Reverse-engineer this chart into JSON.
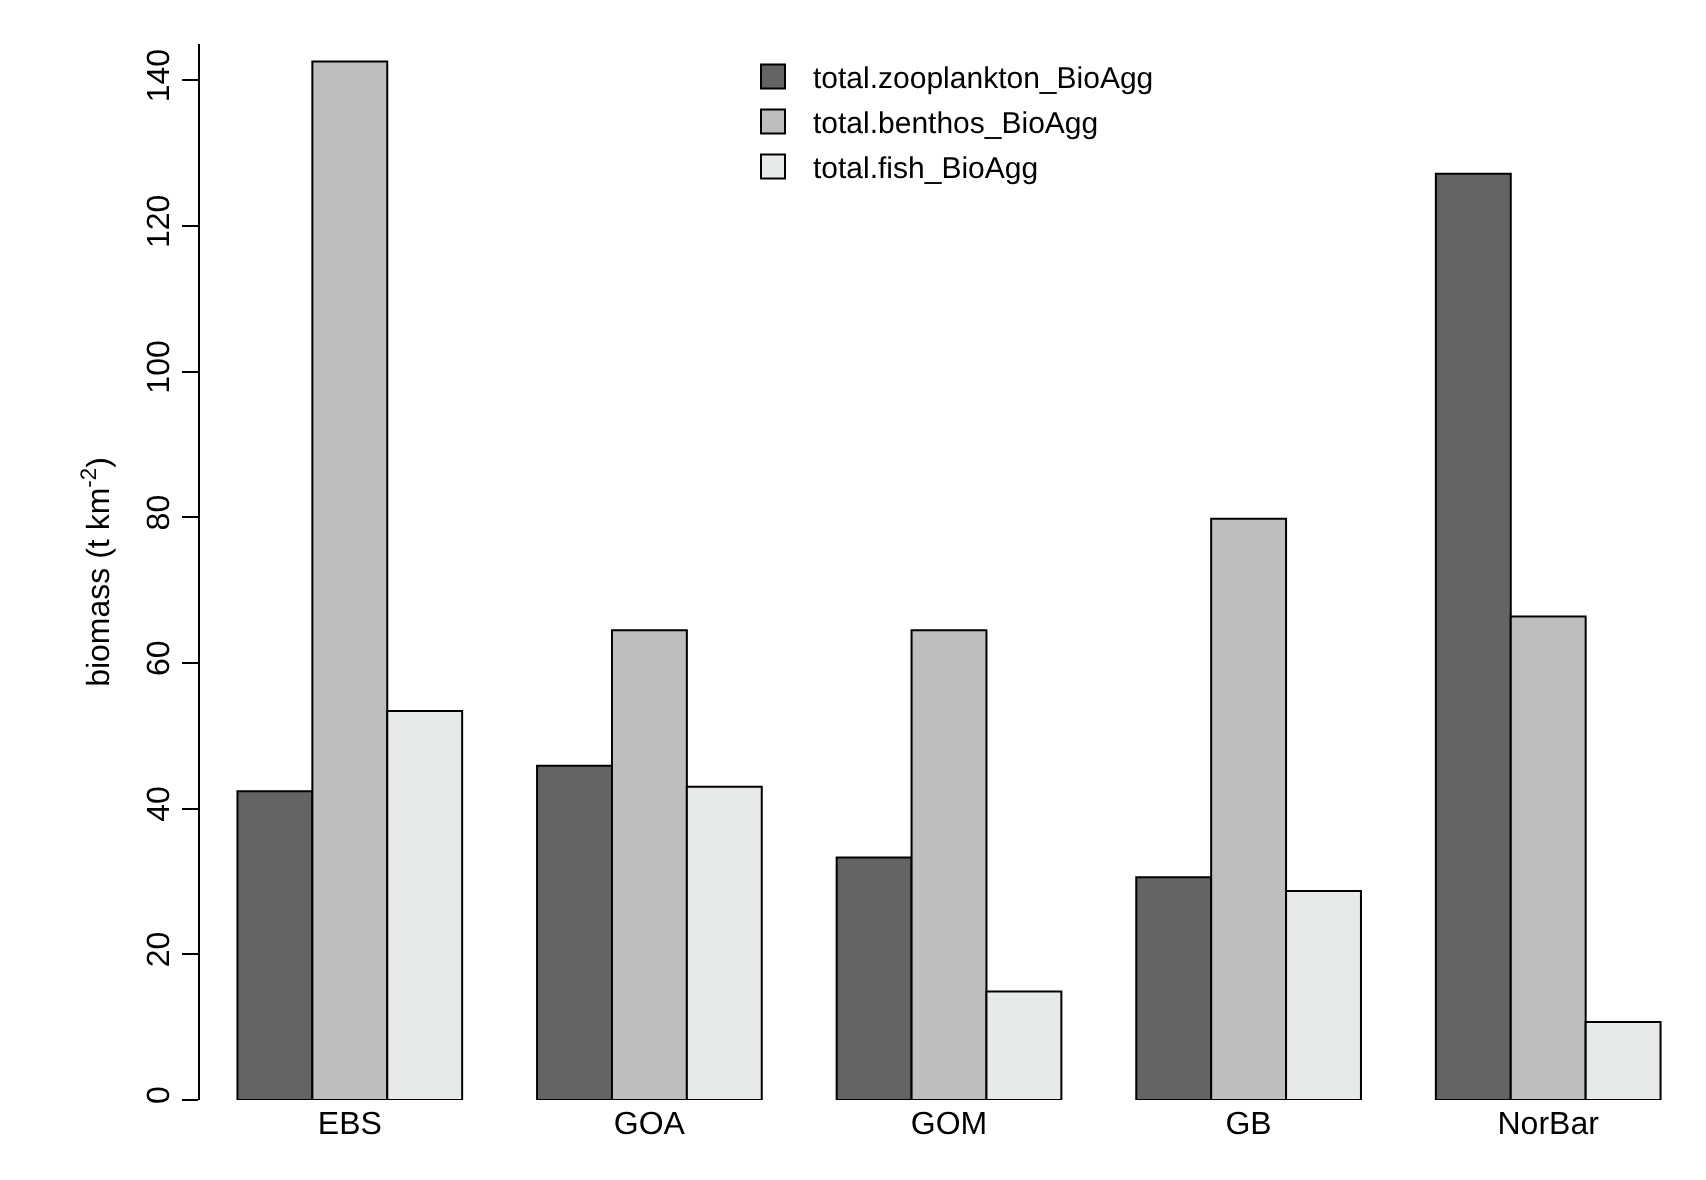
{
  "chart_data": {
    "type": "bar",
    "ylabel": "biomass (t km$^{-2}$)",
    "categories": [
      "EBS",
      "GOA",
      "GOM",
      "GB",
      "NorBar"
    ],
    "series": [
      {
        "name": "total.zooplankton_BioAgg",
        "color": "#646464",
        "values": [
          42.4,
          45.9,
          33.3,
          30.6,
          127.2
        ]
      },
      {
        "name": "total.benthos_BioAgg",
        "color": "#bebebe",
        "values": [
          142.6,
          64.5,
          64.5,
          79.8,
          66.4
        ]
      },
      {
        "name": "total.fish_BioAgg",
        "color": "#e8eaea",
        "values": [
          53.4,
          43.0,
          14.9,
          28.7,
          10.7
        ]
      }
    ],
    "ylim": [
      0,
      145
    ],
    "yticks": [
      0,
      20,
      40,
      60,
      80,
      100,
      120,
      140
    ],
    "grid": false,
    "legend": "top"
  }
}
